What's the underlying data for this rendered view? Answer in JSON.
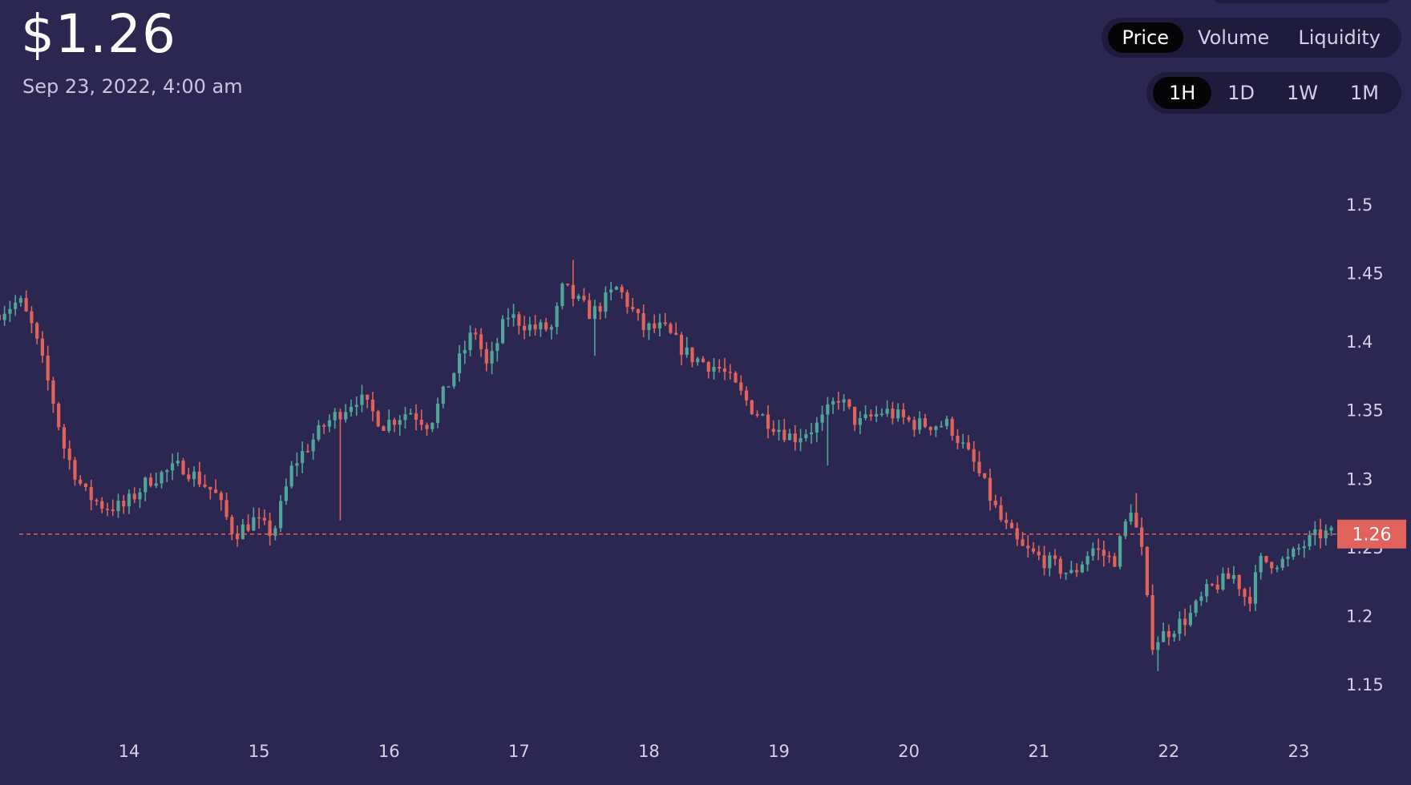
{
  "header": {
    "price": "$1.26",
    "timestamp": "Sep 23, 2022, 4:00 am"
  },
  "metric_tabs": [
    {
      "label": "Price",
      "active": true
    },
    {
      "label": "Volume",
      "active": false
    },
    {
      "label": "Liquidity",
      "active": false
    }
  ],
  "range_tabs": [
    {
      "label": "1H",
      "active": true
    },
    {
      "label": "1D",
      "active": false
    },
    {
      "label": "1W",
      "active": false
    },
    {
      "label": "1M",
      "active": false
    }
  ],
  "colors": {
    "background": "#2c2751",
    "up": "#4fa597",
    "down": "#e0625a",
    "current_line": "#e0625a",
    "tab_bg": "#1e1b3c",
    "tab_active_bg": "#050407"
  },
  "chart_data": {
    "type": "candlestick",
    "interval": "1H",
    "x_ticks": [
      "14",
      "15",
      "16",
      "17",
      "18",
      "19",
      "20",
      "21",
      "22",
      "23"
    ],
    "y_ticks": [
      "1.15",
      "1.2",
      "1.25",
      "1.3",
      "1.35",
      "1.4",
      "1.45",
      "1.5"
    ],
    "ylim": [
      1.13,
      1.52
    ],
    "x_range": [
      13.0,
      23.25
    ],
    "current_value": 1.26,
    "current_label": "1.26",
    "grid": false,
    "keypoints": [
      [
        13.0,
        1.42
      ],
      [
        13.2,
        1.43
      ],
      [
        13.3,
        1.41
      ],
      [
        13.45,
        1.36
      ],
      [
        13.55,
        1.32
      ],
      [
        13.7,
        1.29
      ],
      [
        13.85,
        1.28
      ],
      [
        14.0,
        1.28
      ],
      [
        14.2,
        1.3
      ],
      [
        14.45,
        1.31
      ],
      [
        14.7,
        1.29
      ],
      [
        14.85,
        1.26
      ],
      [
        15.0,
        1.27
      ],
      [
        15.15,
        1.26
      ],
      [
        15.3,
        1.31
      ],
      [
        15.55,
        1.34
      ],
      [
        15.8,
        1.36
      ],
      [
        16.0,
        1.34
      ],
      [
        16.2,
        1.35
      ],
      [
        16.35,
        1.34
      ],
      [
        16.55,
        1.38
      ],
      [
        16.7,
        1.41
      ],
      [
        16.8,
        1.38
      ],
      [
        16.95,
        1.42
      ],
      [
        17.15,
        1.41
      ],
      [
        17.3,
        1.41
      ],
      [
        17.38,
        1.44
      ],
      [
        17.6,
        1.42
      ],
      [
        17.8,
        1.44
      ],
      [
        18.0,
        1.41
      ],
      [
        18.15,
        1.41
      ],
      [
        18.35,
        1.39
      ],
      [
        18.6,
        1.38
      ],
      [
        18.85,
        1.35
      ],
      [
        19.0,
        1.34
      ],
      [
        19.15,
        1.33
      ],
      [
        19.35,
        1.34
      ],
      [
        19.5,
        1.36
      ],
      [
        19.65,
        1.34
      ],
      [
        19.85,
        1.35
      ],
      [
        20.1,
        1.34
      ],
      [
        20.35,
        1.34
      ],
      [
        20.55,
        1.31
      ],
      [
        20.75,
        1.27
      ],
      [
        20.9,
        1.25
      ],
      [
        21.1,
        1.24
      ],
      [
        21.3,
        1.23
      ],
      [
        21.45,
        1.25
      ],
      [
        21.62,
        1.24
      ],
      [
        21.75,
        1.28
      ],
      [
        21.85,
        1.24
      ],
      [
        21.9,
        1.18
      ],
      [
        22.05,
        1.19
      ],
      [
        22.2,
        1.2
      ],
      [
        22.35,
        1.22
      ],
      [
        22.55,
        1.23
      ],
      [
        22.65,
        1.21
      ],
      [
        22.75,
        1.24
      ],
      [
        22.95,
        1.24
      ],
      [
        23.05,
        1.25
      ],
      [
        23.2,
        1.26
      ]
    ]
  }
}
